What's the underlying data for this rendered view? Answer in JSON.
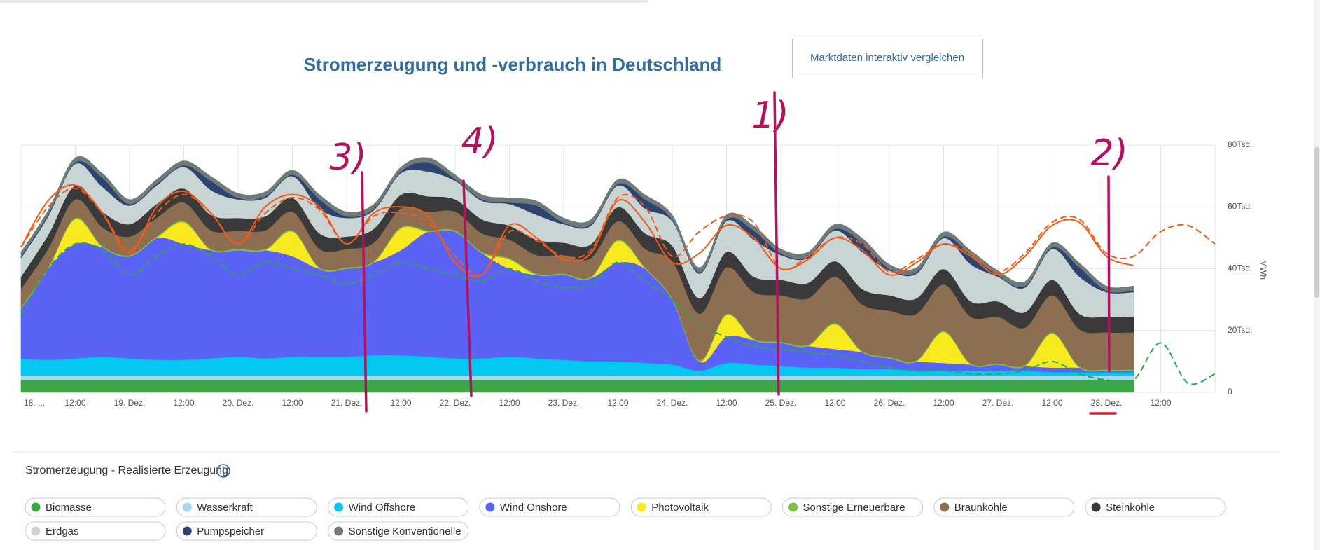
{
  "chart_data": {
    "type": "area",
    "stacked": true,
    "title": "Stromerzeugung und -verbrauch in Deutschland",
    "ylabel": "MWh",
    "x": [
      0,
      6,
      12,
      18,
      24,
      30,
      36,
      42,
      48,
      54,
      60,
      66,
      72,
      78,
      84,
      90,
      96,
      102,
      108,
      114,
      120,
      126,
      132,
      138,
      144,
      150,
      156,
      162,
      168,
      174,
      180,
      186,
      192,
      198,
      204,
      210,
      216,
      222,
      228,
      234,
      240,
      246,
      252,
      258,
      264
    ],
    "xlim": [
      0,
      264
    ],
    "xticks": [
      {
        "value": 0,
        "label": "18. ..."
      },
      {
        "value": 12,
        "label": "12:00"
      },
      {
        "value": 24,
        "label": "19. Dez."
      },
      {
        "value": 36,
        "label": "12:00"
      },
      {
        "value": 48,
        "label": "20. Dez."
      },
      {
        "value": 60,
        "label": "12:00"
      },
      {
        "value": 72,
        "label": "21. Dez."
      },
      {
        "value": 84,
        "label": "12:00"
      },
      {
        "value": 96,
        "label": "22. Dez."
      },
      {
        "value": 108,
        "label": "12:00"
      },
      {
        "value": 120,
        "label": "23. Dez."
      },
      {
        "value": 132,
        "label": "12:00"
      },
      {
        "value": 144,
        "label": "24. Dez."
      },
      {
        "value": 156,
        "label": "12:00"
      },
      {
        "value": 168,
        "label": "25. Dez."
      },
      {
        "value": 180,
        "label": "12:00"
      },
      {
        "value": 192,
        "label": "26. Dez."
      },
      {
        "value": 204,
        "label": "12:00"
      },
      {
        "value": 216,
        "label": "27. Dez."
      },
      {
        "value": 228,
        "label": "12:00"
      },
      {
        "value": 240,
        "label": "28. Dez."
      },
      {
        "value": 252,
        "label": "12:00"
      }
    ],
    "ylim": [
      0,
      80000
    ],
    "yticks": [
      0,
      {
        "value": 20000,
        "label": "20Tsd."
      },
      {
        "value": 40000,
        "label": "40Tsd."
      },
      {
        "value": 60000,
        "label": "60Tsd."
      },
      {
        "value": 80000,
        "label": "80Tsd."
      }
    ],
    "grid": true,
    "series": [
      {
        "name": "Biomasse",
        "color": "#3ba845",
        "values": [
          4000,
          4000,
          4000,
          4000,
          4000,
          4000,
          4000,
          4000,
          4000,
          4000,
          4000,
          4000,
          4000,
          4000,
          4000,
          4000,
          4000,
          4000,
          4000,
          4000,
          4000,
          4000,
          4000,
          4000,
          4000,
          4000,
          4000,
          4000,
          4000,
          4000,
          4000,
          4000,
          4000,
          4000,
          4000,
          4000,
          4000,
          4000,
          4000,
          4000,
          4000,
          4000,
          null,
          null,
          null
        ]
      },
      {
        "name": "Wasserkraft",
        "color": "#a5d8f3",
        "values": [
          1500,
          1500,
          1500,
          1500,
          1500,
          1500,
          1500,
          1500,
          1500,
          1500,
          1500,
          1500,
          1500,
          1500,
          1500,
          1500,
          1500,
          1500,
          1500,
          1500,
          1500,
          1500,
          1500,
          1500,
          1500,
          1500,
          1500,
          1500,
          1500,
          1500,
          1500,
          1500,
          1500,
          1500,
          1500,
          1500,
          1500,
          1500,
          1500,
          1500,
          1500,
          1500,
          null,
          null,
          null
        ]
      },
      {
        "name": "Wind Offshore",
        "color": "#00c8f0",
        "values": [
          5500,
          5000,
          5500,
          6000,
          5500,
          5000,
          5000,
          5500,
          6000,
          5500,
          6000,
          6000,
          6000,
          6500,
          6500,
          6000,
          5500,
          5500,
          6000,
          5500,
          5000,
          4500,
          4500,
          4000,
          3500,
          1500,
          4000,
          3500,
          3000,
          2500,
          2500,
          2000,
          2000,
          1500,
          1500,
          1500,
          1500,
          1500,
          1000,
          1000,
          1000,
          1000,
          null,
          null,
          null
        ]
      },
      {
        "name": "Wind Onshore",
        "color": "#5b63f6",
        "values": [
          16000,
          29500,
          37000,
          35500,
          33000,
          39500,
          37500,
          35000,
          34500,
          35000,
          32500,
          28500,
          28500,
          30000,
          34000,
          40500,
          41000,
          34000,
          28500,
          27000,
          27500,
          27000,
          32000,
          30500,
          21000,
          3000,
          8500,
          8000,
          7500,
          7000,
          6000,
          5500,
          3500,
          3000,
          2500,
          2000,
          2000,
          1500,
          1500,
          1500,
          500,
          500,
          null,
          null,
          null
        ]
      },
      {
        "name": "Photovoltaik",
        "color": "#f8ea1f",
        "values": [
          0,
          0,
          8000,
          0,
          0,
          0,
          7000,
          0,
          0,
          0,
          8000,
          0,
          0,
          0,
          7000,
          0,
          0,
          0,
          3000,
          0,
          0,
          0,
          7000,
          0,
          0,
          0,
          7000,
          0,
          0,
          0,
          8000,
          0,
          0,
          0,
          10000,
          0,
          0,
          0,
          11000,
          0,
          0,
          0,
          null,
          null,
          null
        ]
      },
      {
        "name": "Sonstige Erneuerbare",
        "color": "#7cc142",
        "values": [
          400,
          400,
          400,
          400,
          400,
          400,
          400,
          400,
          400,
          400,
          400,
          400,
          400,
          400,
          400,
          400,
          400,
          400,
          400,
          400,
          400,
          400,
          400,
          400,
          400,
          400,
          400,
          400,
          400,
          400,
          400,
          400,
          400,
          400,
          400,
          400,
          400,
          400,
          400,
          400,
          400,
          400,
          null,
          null,
          null
        ]
      },
      {
        "name": "Braunkohle",
        "color": "#8d6e50",
        "values": [
          6000,
          6000,
          6000,
          6000,
          6000,
          6000,
          6000,
          6000,
          6000,
          6000,
          6000,
          6000,
          6000,
          6000,
          6000,
          6000,
          6000,
          6000,
          6000,
          6000,
          6000,
          6000,
          6000,
          6000,
          12000,
          15000,
          15000,
          15000,
          15000,
          15000,
          15000,
          15000,
          15000,
          15000,
          15000,
          15000,
          15000,
          12000,
          12000,
          12000,
          12000,
          12000,
          null,
          null,
          null
        ]
      },
      {
        "name": "Steinkohle",
        "color": "#3a3a3a",
        "values": [
          4000,
          4500,
          4500,
          5000,
          4000,
          4500,
          4500,
          5000,
          4000,
          4500,
          4500,
          5000,
          4000,
          4500,
          4500,
          5000,
          4000,
          4500,
          4500,
          5000,
          4000,
          4500,
          4500,
          5000,
          5000,
          5000,
          5000,
          5000,
          5000,
          5000,
          5000,
          5000,
          5000,
          5000,
          5000,
          5000,
          5000,
          5000,
          5000,
          5000,
          5000,
          5000,
          null,
          null,
          null
        ]
      },
      {
        "name": "Erdgas",
        "color": "#c8d5d4",
        "values": [
          6000,
          6000,
          7000,
          8000,
          6000,
          6000,
          7000,
          8000,
          6000,
          6000,
          7000,
          8000,
          6000,
          6000,
          7000,
          8000,
          6000,
          6000,
          7000,
          8000,
          6000,
          6000,
          7000,
          8000,
          8000,
          8000,
          10000,
          12000,
          8000,
          8000,
          10000,
          12000,
          8000,
          8000,
          10000,
          12000,
          8000,
          8000,
          10000,
          12000,
          8000,
          8000,
          null,
          null,
          null
        ]
      },
      {
        "name": "Pumpspeicher",
        "color": "#2e4470",
        "values": [
          500,
          500,
          500,
          3000,
          500,
          500,
          500,
          3000,
          500,
          500,
          500,
          3000,
          500,
          500,
          500,
          3000,
          500,
          500,
          500,
          3000,
          500,
          500,
          500,
          3000,
          500,
          500,
          500,
          3000,
          500,
          500,
          500,
          3000,
          500,
          500,
          500,
          3000,
          500,
          500,
          500,
          3000,
          500,
          500,
          null,
          null,
          null
        ]
      },
      {
        "name": "Sonstige Konventionelle",
        "color": "#6f7b78",
        "values": [
          1500,
          1500,
          1500,
          1500,
          1500,
          1500,
          1500,
          1500,
          1500,
          1500,
          1500,
          1500,
          1500,
          1500,
          1500,
          1500,
          1500,
          1500,
          1500,
          1500,
          1500,
          1500,
          1500,
          1500,
          1500,
          1500,
          1500,
          1500,
          1500,
          1500,
          1500,
          1500,
          1500,
          1500,
          1500,
          1500,
          1500,
          1500,
          1500,
          1500,
          1500,
          1500,
          null,
          null,
          null
        ]
      },
      {
        "type": "line",
        "dash": false,
        "color": "#f25a1a",
        "values": [
          47000,
          62000,
          67000,
          58000,
          45000,
          60000,
          65000,
          58000,
          48000,
          60000,
          64000,
          60000,
          48000,
          58000,
          60000,
          57000,
          42000,
          38000,
          54000,
          50000,
          43000,
          45000,
          62000,
          55000,
          42000,
          45000,
          54000,
          50000,
          40000,
          43000,
          50000,
          46000,
          38000,
          42000,
          48000,
          44000,
          38000,
          44000,
          54000,
          55000,
          44000,
          41000,
          null,
          null,
          null
        ]
      },
      {
        "type": "line",
        "dash": true,
        "color": "#f25a1a",
        "values": [
          47000,
          60000,
          66000,
          58000,
          46000,
          58000,
          64000,
          58000,
          48000,
          58000,
          63000,
          59000,
          48000,
          57000,
          58000,
          55000,
          44000,
          38000,
          52000,
          49000,
          44000,
          46000,
          63000,
          60000,
          44000,
          52000,
          57000,
          55000,
          40000,
          44000,
          50000,
          48000,
          39000,
          43000,
          48000,
          45000,
          39000,
          45000,
          55000,
          56000,
          45000,
          44000,
          52000,
          54000,
          48000
        ]
      },
      {
        "type": "line",
        "dash": true,
        "color": "#2aa84a",
        "values": [
          25000,
          40000,
          48000,
          46000,
          38000,
          44000,
          48000,
          44000,
          38000,
          42000,
          40000,
          38000,
          35000,
          38000,
          42000,
          40000,
          38000,
          36000,
          40000,
          36000,
          34000,
          35000,
          42000,
          36000,
          30000,
          22000,
          18000,
          15000,
          14000,
          13000,
          12000,
          10000,
          8000,
          7000,
          7000,
          6000,
          6000,
          7000,
          10000,
          6000,
          4000,
          4000,
          16000,
          3000,
          6000
        ]
      }
    ],
    "annotations": [
      "3)",
      "4)",
      "1)",
      "2)"
    ]
  },
  "button": "Marktdaten interaktiv vergleichen",
  "legend_title": "Stromerzeugung - Realisierte Erzeugung",
  "info_icon": "i"
}
